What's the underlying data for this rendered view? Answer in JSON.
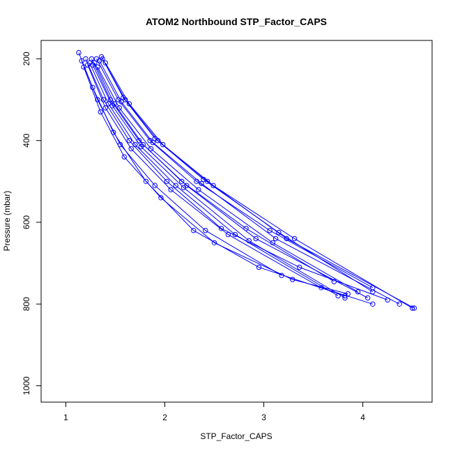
{
  "chart_data": {
    "type": "scatter",
    "title": "ATOM2 Northbound STP_Factor_CAPS",
    "xlabel": "STP_Factor_CAPS",
    "ylabel": "Pressure (mbar)",
    "xlim": [
      0.75,
      4.7
    ],
    "ylim": [
      1040,
      155
    ],
    "y_reversed": true,
    "x_ticks": [
      1,
      2,
      3,
      4
    ],
    "y_ticks": [
      200,
      400,
      600,
      800,
      1000
    ],
    "grid": false,
    "legend": "none",
    "colors": {
      "series": "#0000ff",
      "axis": "#000000",
      "background": "#ffffff"
    },
    "series": [
      {
        "x": [
          1.26,
          1.45,
          1.74,
          2.17,
          2.82,
          3.71
        ],
        "y": [
          200,
          300,
          400,
          500,
          615,
          745
        ]
      },
      {
        "x": [
          1.2,
          1.38,
          1.64,
          2.02,
          2.57,
          3.36,
          4.25
        ],
        "y": [
          200,
          300,
          400,
          500,
          615,
          710,
          790
        ]
      },
      {
        "x": [
          1.31,
          1.53,
          1.85,
          2.32,
          3.06,
          4.1
        ],
        "y": [
          200,
          300,
          400,
          500,
          620,
          760
        ]
      },
      {
        "x": [
          1.13,
          1.27,
          1.48,
          1.81,
          2.29,
          2.95,
          3.82
        ],
        "y": [
          185,
          270,
          380,
          500,
          620,
          710,
          780
        ]
      },
      {
        "x": [
          1.37,
          1.6,
          1.93,
          2.43,
          3.23,
          4.52
        ],
        "y": [
          200,
          300,
          400,
          500,
          640,
          810
        ]
      },
      {
        "x": [
          1.29,
          1.49,
          1.78,
          2.22,
          2.92,
          4.05
        ],
        "y": [
          210,
          310,
          410,
          510,
          640,
          785
        ]
      },
      {
        "x": [
          1.22,
          1.4,
          1.66,
          2.06,
          2.64,
          3.58,
          4.1
        ],
        "y": [
          215,
          320,
          420,
          520,
          630,
          760,
          800
        ]
      },
      {
        "x": [
          1.34,
          1.56,
          1.88,
          2.37,
          3.12,
          4.37
        ],
        "y": [
          205,
          305,
          405,
          505,
          640,
          800
        ]
      },
      {
        "x": [
          1.18,
          1.35,
          1.59,
          1.96,
          2.5,
          3.29,
          3.85
        ],
        "y": [
          220,
          330,
          440,
          540,
          650,
          740,
          775
        ]
      },
      {
        "x": [
          1.4,
          1.64,
          1.98,
          2.49,
          3.31,
          4.5
        ],
        "y": [
          210,
          310,
          410,
          510,
          640,
          810
        ]
      },
      {
        "x": [
          1.24,
          1.43,
          1.7,
          2.11,
          2.71,
          3.75
        ],
        "y": [
          210,
          310,
          410,
          510,
          630,
          780
        ]
      },
      {
        "x": [
          1.32,
          1.54,
          1.86,
          2.34,
          3.09,
          3.95
        ],
        "y": [
          220,
          320,
          420,
          520,
          650,
          770
        ]
      },
      {
        "x": [
          1.16,
          1.32,
          1.55,
          1.9,
          2.41,
          3.18
        ],
        "y": [
          205,
          300,
          410,
          510,
          620,
          730
        ]
      },
      {
        "x": [
          1.36,
          1.58,
          1.9,
          2.39,
          3.15,
          4.1
        ],
        "y": [
          195,
          295,
          395,
          495,
          625,
          770
        ]
      },
      {
        "x": [
          1.27,
          1.47,
          1.76,
          2.19,
          2.85,
          3.82
        ],
        "y": [
          215,
          315,
          415,
          515,
          645,
          785
        ]
      }
    ]
  }
}
